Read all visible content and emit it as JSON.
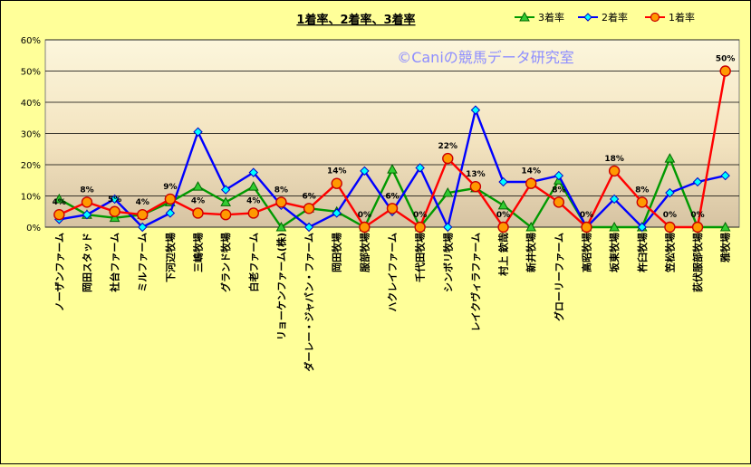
{
  "chart_data": {
    "type": "line",
    "title": "1着率、2着率、3着率",
    "watermark": "©Caniの競馬データ研究室",
    "ylim": [
      0,
      0.6
    ],
    "yticks": [
      "0%",
      "10%",
      "20%",
      "30%",
      "40%",
      "50%",
      "60%"
    ],
    "grid": "horizontal",
    "legend_position": "top-right",
    "categories": [
      "ノーザンファーム",
      "岡田スタッド",
      "社台ファーム",
      "ミルファーム",
      "下河辺牧場",
      "三嶋牧場",
      "グランド牧場",
      "白老ファーム",
      "リョーケンファーム(株)",
      "ダーレー・ジャパン・ファーム",
      "岡田牧場",
      "服部牧場",
      "ハクレイファーム",
      "千代田牧場",
      "シンボリ牧場",
      "レイクヴィラファーム",
      "村上 欽哉",
      "新井牧場",
      "グローリーファーム",
      "高昭牧場",
      "坂東牧場",
      "杵臼牧場",
      "笠松牧場",
      "荻伏服部牧場",
      "雅牧場"
    ],
    "series": [
      {
        "name": "3着率",
        "color": "#009900",
        "marker": "triangle",
        "values": [
          0.09,
          0.04,
          0.03,
          0.04,
          0.08,
          0.13,
          0.08,
          0.13,
          0.0,
          0.06,
          0.05,
          0.0,
          0.185,
          0.0,
          0.11,
          0.125,
          0.07,
          0.0,
          0.15,
          0.0,
          0.0,
          0.0,
          0.22,
          0.0,
          0.0
        ]
      },
      {
        "name": "2着率",
        "color": "#0000ff",
        "marker": "diamond",
        "values": [
          0.025,
          0.04,
          0.09,
          0.0,
          0.045,
          0.305,
          0.12,
          0.175,
          0.07,
          0.0,
          0.045,
          0.18,
          0.05,
          0.19,
          0.0,
          0.375,
          0.145,
          0.145,
          0.165,
          0.0,
          0.09,
          0.0,
          0.11,
          0.145,
          0.165
        ]
      },
      {
        "name": "1着率",
        "color": "#ff0000",
        "marker": "circle",
        "values": [
          0.04,
          0.08,
          0.05,
          0.04,
          0.09,
          0.045,
          0.04,
          0.045,
          0.08,
          0.06,
          0.14,
          0.0,
          0.06,
          0.0,
          0.22,
          0.13,
          0.0,
          0.14,
          0.08,
          0.0,
          0.18,
          0.08,
          0.0,
          0.0,
          0.5
        ],
        "labels": [
          "4%",
          "8%",
          "5%",
          "4%",
          "9%",
          "4%",
          "",
          "4%",
          "8%",
          "6%",
          "14%",
          "0%",
          "6%",
          "0%",
          "22%",
          "13%",
          "0%",
          "14%",
          "8%",
          "0%",
          "18%",
          "8%",
          "0%",
          "0%",
          "50%"
        ]
      }
    ]
  }
}
